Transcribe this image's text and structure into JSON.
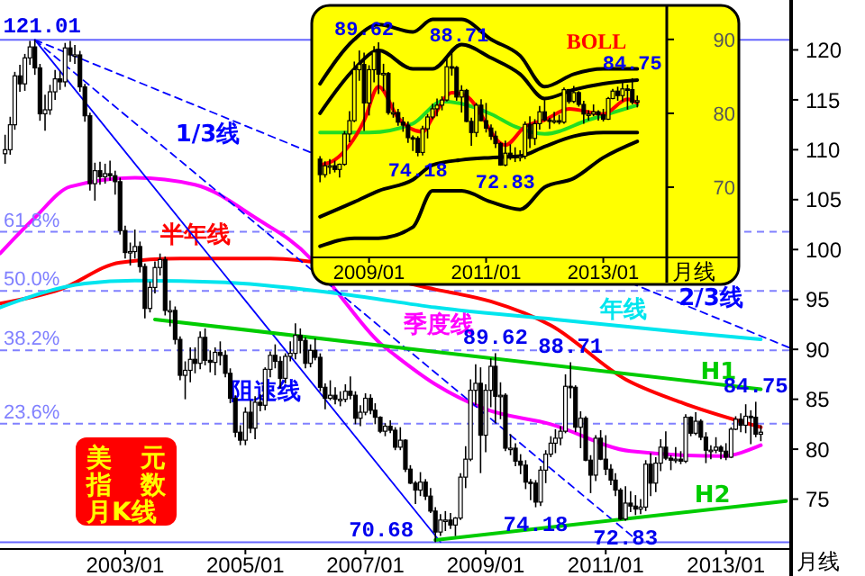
{
  "chart_data": [
    {
      "type": "candlestick",
      "title": "美元指数月K线",
      "xlabel": "月线",
      "xlim": [
        "2000-12",
        "2014-02"
      ],
      "ylim": [
        70,
        125
      ],
      "xticks": [
        {
          "value": "2003-01",
          "label": "2003/01"
        },
        {
          "value": "2005-01",
          "label": "2005/01"
        },
        {
          "value": "2007-01",
          "label": "2007/01"
        },
        {
          "value": "2009-01",
          "label": "2009/01"
        },
        {
          "value": "2011-01",
          "label": "2011/01"
        },
        {
          "value": "2013-01",
          "label": "2013/01"
        }
      ],
      "yticks": [
        75,
        80,
        85,
        90,
        95,
        100,
        105,
        110,
        115,
        120
      ],
      "x": [
        "2001-01",
        "2001-02",
        "2001-03",
        "2001-04",
        "2001-05",
        "2001-06",
        "2001-07",
        "2001-08",
        "2001-09",
        "2001-10",
        "2001-11",
        "2001-12",
        "2002-01",
        "2002-02",
        "2002-03",
        "2002-04",
        "2002-05",
        "2002-06",
        "2002-07",
        "2002-08",
        "2002-09",
        "2002-10",
        "2002-11",
        "2002-12",
        "2003-01",
        "2003-02",
        "2003-03",
        "2003-04",
        "2003-05",
        "2003-06",
        "2003-07",
        "2003-08",
        "2003-09",
        "2003-10",
        "2003-11",
        "2003-12",
        "2004-01",
        "2004-02",
        "2004-03",
        "2004-04",
        "2004-05",
        "2004-06",
        "2004-07",
        "2004-08",
        "2004-09",
        "2004-10",
        "2004-11",
        "2004-12",
        "2005-01",
        "2005-02",
        "2005-03",
        "2005-04",
        "2005-05",
        "2005-06",
        "2005-07",
        "2005-08",
        "2005-09",
        "2005-10",
        "2005-11",
        "2005-12",
        "2006-01",
        "2006-02",
        "2006-03",
        "2006-04",
        "2006-05",
        "2006-06",
        "2006-07",
        "2006-08",
        "2006-09",
        "2006-10",
        "2006-11",
        "2006-12",
        "2007-01",
        "2007-02",
        "2007-03",
        "2007-04",
        "2007-05",
        "2007-06",
        "2007-07",
        "2007-08",
        "2007-09",
        "2007-10",
        "2007-11",
        "2007-12",
        "2008-01",
        "2008-02",
        "2008-03",
        "2008-04",
        "2008-05",
        "2008-06",
        "2008-07",
        "2008-08",
        "2008-09",
        "2008-10",
        "2008-11",
        "2008-12",
        "2009-01",
        "2009-02",
        "2009-03",
        "2009-04",
        "2009-05",
        "2009-06",
        "2009-07",
        "2009-08",
        "2009-09",
        "2009-10",
        "2009-11",
        "2009-12",
        "2010-01",
        "2010-02",
        "2010-03",
        "2010-04",
        "2010-05",
        "2010-06",
        "2010-07",
        "2010-08",
        "2010-09",
        "2010-10",
        "2010-11",
        "2010-12",
        "2011-01",
        "2011-02",
        "2011-03",
        "2011-04",
        "2011-05",
        "2011-06",
        "2011-07",
        "2011-08",
        "2011-09",
        "2011-10",
        "2011-11",
        "2011-12",
        "2012-01",
        "2012-02",
        "2012-03",
        "2012-04",
        "2012-05",
        "2012-06",
        "2012-07",
        "2012-08",
        "2012-09",
        "2012-10",
        "2012-11",
        "2012-12",
        "2013-01",
        "2013-02",
        "2013-03",
        "2013-04",
        "2013-05",
        "2013-06",
        "2013-07",
        "2013-08"
      ],
      "ohlc": [
        [
          109.6,
          111.5,
          108.6,
          110.0
        ],
        [
          110.0,
          113.3,
          109.5,
          112.5
        ],
        [
          112.5,
          117.8,
          112.0,
          117.4
        ],
        [
          117.4,
          118.5,
          115.8,
          116.6
        ],
        [
          116.6,
          119.6,
          115.9,
          119.2
        ],
        [
          119.2,
          120.9,
          118.5,
          120.3
        ],
        [
          120.3,
          121.01,
          117.5,
          118.2
        ],
        [
          118.2,
          118.6,
          112.9,
          113.6
        ],
        [
          113.6,
          115.5,
          111.9,
          114.0
        ],
        [
          114.0,
          116.5,
          113.5,
          115.8
        ],
        [
          115.8,
          118.0,
          115.0,
          117.1
        ],
        [
          117.1,
          117.9,
          116.0,
          116.8
        ],
        [
          116.8,
          120.7,
          116.3,
          120.2
        ],
        [
          120.2,
          120.9,
          118.8,
          119.5
        ],
        [
          119.5,
          120.5,
          118.6,
          119.5
        ],
        [
          119.5,
          119.9,
          115.8,
          116.3
        ],
        [
          116.3,
          116.6,
          112.8,
          113.4
        ],
        [
          113.4,
          113.7,
          105.9,
          106.6
        ],
        [
          106.6,
          108.7,
          104.9,
          107.9
        ],
        [
          107.9,
          108.8,
          106.5,
          107.3
        ],
        [
          107.3,
          108.6,
          106.6,
          107.6
        ],
        [
          107.6,
          108.9,
          106.9,
          107.4
        ],
        [
          107.4,
          107.9,
          105.5,
          106.8
        ],
        [
          106.8,
          107.2,
          101.5,
          101.9
        ],
        [
          101.9,
          102.4,
          99.1,
          99.7
        ],
        [
          99.7,
          100.7,
          98.4,
          99.8
        ],
        [
          99.8,
          102.0,
          99.1,
          100.3
        ],
        [
          100.3,
          100.8,
          97.7,
          98.3
        ],
        [
          98.3,
          98.6,
          93.1,
          94.1
        ],
        [
          94.1,
          96.8,
          93.7,
          96.2
        ],
        [
          96.2,
          98.8,
          95.6,
          98.2
        ],
        [
          98.2,
          99.6,
          97.4,
          99.0
        ],
        [
          99.0,
          99.3,
          93.4,
          93.9
        ],
        [
          93.9,
          94.9,
          92.3,
          93.9
        ],
        [
          93.9,
          94.3,
          90.5,
          91.0
        ],
        [
          91.0,
          91.3,
          86.9,
          87.4
        ],
        [
          87.4,
          88.8,
          85.0,
          87.9
        ],
        [
          87.9,
          90.2,
          86.7,
          89.0
        ],
        [
          89.0,
          90.2,
          87.6,
          88.6
        ],
        [
          88.6,
          91.8,
          88.0,
          91.2
        ],
        [
          91.2,
          92.1,
          88.4,
          88.9
        ],
        [
          88.9,
          89.9,
          87.7,
          88.7
        ],
        [
          88.7,
          90.2,
          87.4,
          89.7
        ],
        [
          89.7,
          90.8,
          88.4,
          89.4
        ],
        [
          89.4,
          89.9,
          87.2,
          87.6
        ],
        [
          87.6,
          88.1,
          84.6,
          85.1
        ],
        [
          85.1,
          85.4,
          81.2,
          81.7
        ],
        [
          81.7,
          82.4,
          80.4,
          80.9
        ],
        [
          80.9,
          84.2,
          80.4,
          83.7
        ],
        [
          83.7,
          84.9,
          81.6,
          82.1
        ],
        [
          82.1,
          85.3,
          81.0,
          84.7
        ],
        [
          84.7,
          85.5,
          83.8,
          84.4
        ],
        [
          84.4,
          88.2,
          83.9,
          88.0
        ],
        [
          88.0,
          89.8,
          87.2,
          89.4
        ],
        [
          89.4,
          90.5,
          88.1,
          88.8
        ],
        [
          88.8,
          89.3,
          86.1,
          87.1
        ],
        [
          87.1,
          89.6,
          86.6,
          89.3
        ],
        [
          89.3,
          90.8,
          88.8,
          89.6
        ],
        [
          89.6,
          92.6,
          89.0,
          91.4
        ],
        [
          91.4,
          92.1,
          89.6,
          90.9
        ],
        [
          90.9,
          91.2,
          88.1,
          88.6
        ],
        [
          88.6,
          90.5,
          88.2,
          89.9
        ],
        [
          89.9,
          91.1,
          88.9,
          89.2
        ],
        [
          89.2,
          89.6,
          85.8,
          86.2
        ],
        [
          86.2,
          86.6,
          84.0,
          85.1
        ],
        [
          85.1,
          86.9,
          84.9,
          85.4
        ],
        [
          85.4,
          86.2,
          84.5,
          85.0
        ],
        [
          85.0,
          85.8,
          84.3,
          85.0
        ],
        [
          85.0,
          86.5,
          84.7,
          85.8
        ],
        [
          85.8,
          87.3,
          85.0,
          85.4
        ],
        [
          85.4,
          85.8,
          82.5,
          83.1
        ],
        [
          83.1,
          84.4,
          82.3,
          83.7
        ],
        [
          83.7,
          85.6,
          83.4,
          85.1
        ],
        [
          85.1,
          85.5,
          83.5,
          83.9
        ],
        [
          83.9,
          84.6,
          82.5,
          83.2
        ],
        [
          83.2,
          83.3,
          81.6,
          81.8
        ],
        [
          81.8,
          82.6,
          81.3,
          82.3
        ],
        [
          82.3,
          82.9,
          81.6,
          81.9
        ],
        [
          81.9,
          82.2,
          79.9,
          80.2
        ],
        [
          80.2,
          82.2,
          79.9,
          80.9
        ],
        [
          80.9,
          81.0,
          77.7,
          78.0
        ],
        [
          78.0,
          78.4,
          76.5,
          76.6
        ],
        [
          76.6,
          76.8,
          74.5,
          75.9
        ],
        [
          75.9,
          77.7,
          75.3,
          76.7
        ],
        [
          76.7,
          77.0,
          74.9,
          75.3
        ],
        [
          75.3,
          76.1,
          73.6,
          73.8
        ],
        [
          73.8,
          74.2,
          70.68,
          71.7
        ],
        [
          71.7,
          73.5,
          71.3,
          72.9
        ],
        [
          72.9,
          73.8,
          71.8,
          72.9
        ],
        [
          72.9,
          73.6,
          72.0,
          72.4
        ],
        [
          72.4,
          73.2,
          71.3,
          73.1
        ],
        [
          73.1,
          77.6,
          72.9,
          77.2
        ],
        [
          77.2,
          80.3,
          76.1,
          79.0
        ],
        [
          79.0,
          87.0,
          78.8,
          85.9
        ],
        [
          85.9,
          88.5,
          84.4,
          86.6
        ],
        [
          86.6,
          88.2,
          77.6,
          81.4
        ],
        [
          81.4,
          86.5,
          79.7,
          85.9
        ],
        [
          85.9,
          89.1,
          84.2,
          88.3
        ],
        [
          88.3,
          89.62,
          82.6,
          85.3
        ],
        [
          85.3,
          86.7,
          83.0,
          85.4
        ],
        [
          85.4,
          85.6,
          79.8,
          80.1
        ],
        [
          80.1,
          81.5,
          79.4,
          80.1
        ],
        [
          80.1,
          80.6,
          78.3,
          78.8
        ],
        [
          78.8,
          79.5,
          77.5,
          78.4
        ],
        [
          78.4,
          78.9,
          76.0,
          76.7
        ],
        [
          76.7,
          77.0,
          74.9,
          76.6
        ],
        [
          76.6,
          76.9,
          74.18,
          74.7
        ],
        [
          74.7,
          78.3,
          74.3,
          77.9
        ],
        [
          77.9,
          79.9,
          76.6,
          79.5
        ],
        [
          79.5,
          81.3,
          79.2,
          80.6
        ],
        [
          80.6,
          82.0,
          79.6,
          81.1
        ],
        [
          81.1,
          82.3,
          80.4,
          81.8
        ],
        [
          81.8,
          87.5,
          81.6,
          86.3
        ],
        [
          86.3,
          88.71,
          85.1,
          86.2
        ],
        [
          86.2,
          86.4,
          81.7,
          82.2
        ],
        [
          82.2,
          83.8,
          80.1,
          83.1
        ],
        [
          83.1,
          83.3,
          78.8,
          78.9
        ],
        [
          78.9,
          79.4,
          75.6,
          77.4
        ],
        [
          77.4,
          81.4,
          76.8,
          81.1
        ],
        [
          81.1,
          81.9,
          78.9,
          79.0
        ],
        [
          79.0,
          81.4,
          77.4,
          78.0
        ],
        [
          78.0,
          78.5,
          76.4,
          76.9
        ],
        [
          76.9,
          77.6,
          75.3,
          75.9
        ],
        [
          75.9,
          76.1,
          72.9,
          73.0
        ],
        [
          73.0,
          76.3,
          72.83,
          74.6
        ],
        [
          74.6,
          75.8,
          73.7,
          74.3
        ],
        [
          74.3,
          75.4,
          73.4,
          74.0
        ],
        [
          74.0,
          75.0,
          73.5,
          74.2
        ],
        [
          74.2,
          78.9,
          73.8,
          78.5
        ],
        [
          78.5,
          79.6,
          75.3,
          76.6
        ],
        [
          76.6,
          79.2,
          75.7,
          78.6
        ],
        [
          78.6,
          81.0,
          77.8,
          80.2
        ],
        [
          80.2,
          81.8,
          78.9,
          79.1
        ],
        [
          79.1,
          79.4,
          77.9,
          78.9
        ],
        [
          78.9,
          80.2,
          78.6,
          79.0
        ],
        [
          79.0,
          79.8,
          78.5,
          78.8
        ],
        [
          78.8,
          83.5,
          78.6,
          83.2
        ],
        [
          83.2,
          83.3,
          81.3,
          81.6
        ],
        [
          81.6,
          83.7,
          81.4,
          82.8
        ],
        [
          82.8,
          83.0,
          80.9,
          81.2
        ],
        [
          81.2,
          81.7,
          78.6,
          79.9
        ],
        [
          79.9,
          80.4,
          79.0,
          79.9
        ],
        [
          79.9,
          81.2,
          79.6,
          80.2
        ],
        [
          80.2,
          80.4,
          79.0,
          79.8
        ],
        [
          79.8,
          80.6,
          78.9,
          79.2
        ],
        [
          79.2,
          82.2,
          79.1,
          82.0
        ],
        [
          82.0,
          83.3,
          81.9,
          83.0
        ],
        [
          83.0,
          83.6,
          81.7,
          82.4
        ],
        [
          82.4,
          84.5,
          81.6,
          83.3
        ],
        [
          83.3,
          83.9,
          80.5,
          83.2
        ],
        [
          83.2,
          84.75,
          81.2,
          81.5
        ],
        [
          81.5,
          82.4,
          80.8,
          81.7
        ]
      ],
      "series": [
        {
          "name": "季度线",
          "type": "line",
          "color": "#ff00ff",
          "x": [
            "2000-12",
            "2001-07",
            "2002-02",
            "2003-03",
            "2004-03",
            "2005-03",
            "2006-02",
            "2006-07",
            "2007-04",
            "2007-07",
            "2008-03",
            "2009-01",
            "2010-02",
            "2011-06",
            "2012-12",
            "2013-08"
          ],
          "values": [
            99.6,
            103.2,
            106.3,
            107.2,
            106.5,
            103.2,
            99.1,
            96.0,
            90.6,
            89.4,
            86.5,
            84.0,
            82.5,
            79.8,
            79.3,
            80.4
          ]
        },
        {
          "name": "半年线",
          "type": "line",
          "color": "#ff0000",
          "x": [
            "2000-12",
            "2001-12",
            "2002-12",
            "2003-12",
            "2005-06",
            "2008-03",
            "2009-02",
            "2010-02",
            "2011-05",
            "2012-04",
            "2013-08"
          ],
          "values": [
            94.6,
            96.0,
            98.7,
            99.1,
            99.1,
            96.0,
            94.8,
            92.4,
            87.0,
            84.7,
            82.2
          ]
        },
        {
          "name": "年线",
          "type": "line",
          "color": "#00e5ee",
          "x": [
            "2000-12",
            "2002-05",
            "2003-03",
            "2004-09",
            "2006-09",
            "2008-03",
            "2010-03",
            "2011-09",
            "2012-09",
            "2013-08"
          ],
          "values": [
            94.2,
            96.6,
            96.9,
            96.7,
            95.5,
            94.2,
            93.0,
            92.1,
            91.5,
            91.0
          ]
        },
        {
          "name": "阻速线",
          "type": "line",
          "color": "#0000ff",
          "line_style": "solid",
          "x": [
            "2001-07",
            "2008-04"
          ],
          "values": [
            121.0,
            70.7
          ]
        },
        {
          "name": "1/3线",
          "type": "line",
          "color": "#0000ff",
          "line_style": "dashed",
          "x": [
            "2001-07",
            "2011-07"
          ],
          "values": [
            121.0,
            71.0
          ]
        },
        {
          "name": "2/3线",
          "type": "line",
          "color": "#0000ff",
          "line_style": "dashed",
          "x": [
            "2001-07",
            "2014-02"
          ],
          "values": [
            121.0,
            90.1
          ]
        },
        {
          "name": "H1",
          "type": "line",
          "color": "#00cc00",
          "x": [
            "2003-07",
            "2013-08"
          ],
          "values": [
            93.0,
            86.0
          ]
        },
        {
          "name": "H2",
          "type": "line",
          "color": "#00cc00",
          "x": [
            "2008-03",
            "2014-01"
          ],
          "values": [
            70.9,
            74.8
          ]
        }
      ],
      "ref_lines": [
        {
          "axis": "y",
          "value": 121.01,
          "color": "#6666ff",
          "line_style": "solid"
        },
        {
          "axis": "y",
          "value": 101.78,
          "color": "#8080ff",
          "line_style": "dashed"
        },
        {
          "axis": "y",
          "value": 95.85,
          "color": "#8080ff",
          "line_style": "dashed"
        },
        {
          "axis": "y",
          "value": 89.91,
          "color": "#8080ff",
          "line_style": "dashed"
        },
        {
          "axis": "y",
          "value": 82.56,
          "color": "#8080ff",
          "line_style": "dashed"
        },
        {
          "axis": "y",
          "value": 70.68,
          "color": "#6666ff",
          "line_style": "solid"
        }
      ],
      "annotations": [
        {
          "text": "121.01",
          "x": "2001-07",
          "y": 121.01
        },
        {
          "text": "89.62",
          "x": "2009-03",
          "y": 89.62
        },
        {
          "text": "88.71",
          "x": "2010-06",
          "y": 88.71
        },
        {
          "text": "84.75",
          "x": "2013-07",
          "y": 84.75
        },
        {
          "text": "74.18",
          "x": "2009-11",
          "y": 74.18
        },
        {
          "text": "72.83",
          "x": "2011-05",
          "y": 72.83
        },
        {
          "text": "70.68",
          "x": "2008-03",
          "y": 70.68
        },
        {
          "text": "61.8%",
          "x": "2000-12",
          "y": 101.78
        },
        {
          "text": "50.0%",
          "x": "2000-12",
          "y": 95.85
        },
        {
          "text": "38.2%",
          "x": "2000-12",
          "y": 89.91
        },
        {
          "text": "23.6%",
          "x": "2000-12",
          "y": 82.56
        }
      ]
    },
    {
      "type": "candlestick",
      "title": "BOLL",
      "xlabel": "月线",
      "xlim": [
        "2008-02",
        "2014-02"
      ],
      "ylim": [
        60.5,
        94.6
      ],
      "xticks": [
        {
          "value": "2009-01",
          "label": "2009/01"
        },
        {
          "value": "2011-01",
          "label": "2011/01"
        },
        {
          "value": "2013-01",
          "label": "2013/01"
        }
      ],
      "yticks": [
        70,
        80,
        90
      ],
      "x": [
        "2008-03",
        "2008-04",
        "2008-05",
        "2008-06",
        "2008-07",
        "2008-08",
        "2008-09",
        "2008-10",
        "2008-11",
        "2008-12",
        "2009-01",
        "2009-02",
        "2009-03",
        "2009-04",
        "2009-05",
        "2009-06",
        "2009-07",
        "2009-08",
        "2009-09",
        "2009-10",
        "2009-11",
        "2009-12",
        "2010-01",
        "2010-02",
        "2010-03",
        "2010-04",
        "2010-05",
        "2010-06",
        "2010-07",
        "2010-08",
        "2010-09",
        "2010-10",
        "2010-11",
        "2010-12",
        "2011-01",
        "2011-02",
        "2011-03",
        "2011-04",
        "2011-05",
        "2011-06",
        "2011-07",
        "2011-08",
        "2011-09",
        "2011-10",
        "2011-11",
        "2011-12",
        "2012-01",
        "2012-02",
        "2012-03",
        "2012-04",
        "2012-05",
        "2012-06",
        "2012-07",
        "2012-08",
        "2012-09",
        "2012-10",
        "2012-11",
        "2012-12",
        "2013-01",
        "2013-02",
        "2013-03",
        "2013-04",
        "2013-05",
        "2013-06",
        "2013-07",
        "2013-08"
      ],
      "ohlc": [
        [
          73.8,
          74.2,
          70.68,
          71.7
        ],
        [
          71.7,
          73.5,
          71.3,
          72.9
        ],
        [
          72.9,
          73.8,
          71.8,
          72.9
        ],
        [
          72.9,
          73.6,
          72.0,
          72.4
        ],
        [
          72.4,
          73.2,
          71.3,
          73.1
        ],
        [
          73.1,
          77.6,
          72.9,
          77.2
        ],
        [
          77.2,
          80.3,
          76.1,
          79.0
        ],
        [
          79.0,
          87.0,
          78.8,
          85.9
        ],
        [
          85.9,
          88.5,
          84.4,
          86.6
        ],
        [
          86.6,
          88.2,
          77.6,
          81.4
        ],
        [
          81.4,
          86.5,
          79.7,
          85.9
        ],
        [
          85.9,
          89.1,
          84.2,
          88.3
        ],
        [
          88.3,
          89.62,
          82.6,
          85.3
        ],
        [
          85.3,
          86.7,
          83.0,
          85.4
        ],
        [
          85.4,
          85.6,
          79.8,
          80.1
        ],
        [
          80.1,
          81.5,
          79.4,
          80.1
        ],
        [
          80.1,
          80.6,
          78.3,
          78.8
        ],
        [
          78.8,
          79.5,
          77.5,
          78.4
        ],
        [
          78.4,
          78.9,
          76.0,
          76.7
        ],
        [
          76.7,
          77.0,
          74.9,
          76.6
        ],
        [
          76.6,
          76.9,
          74.18,
          74.7
        ],
        [
          74.7,
          78.3,
          74.3,
          77.9
        ],
        [
          77.9,
          79.9,
          76.6,
          79.5
        ],
        [
          79.5,
          81.3,
          79.2,
          80.6
        ],
        [
          80.6,
          82.0,
          79.6,
          81.1
        ],
        [
          81.1,
          82.3,
          80.4,
          81.8
        ],
        [
          81.8,
          87.5,
          81.6,
          86.3
        ],
        [
          86.3,
          88.71,
          85.1,
          86.2
        ],
        [
          86.2,
          86.4,
          81.7,
          82.2
        ],
        [
          82.2,
          83.8,
          80.1,
          83.1
        ],
        [
          83.1,
          83.3,
          78.8,
          78.9
        ],
        [
          78.9,
          79.4,
          75.6,
          77.4
        ],
        [
          77.4,
          81.4,
          76.8,
          81.1
        ],
        [
          81.1,
          81.9,
          78.9,
          79.0
        ],
        [
          79.0,
          81.4,
          77.4,
          78.0
        ],
        [
          78.0,
          78.5,
          76.4,
          76.9
        ],
        [
          76.9,
          77.6,
          75.3,
          75.9
        ],
        [
          75.9,
          76.1,
          72.9,
          73.0
        ],
        [
          73.0,
          76.3,
          72.83,
          74.6
        ],
        [
          74.6,
          75.8,
          73.7,
          74.3
        ],
        [
          74.3,
          75.4,
          73.4,
          74.0
        ],
        [
          74.0,
          75.0,
          73.5,
          74.2
        ],
        [
          74.2,
          78.9,
          73.8,
          78.5
        ],
        [
          78.5,
          79.6,
          75.3,
          76.6
        ],
        [
          76.6,
          79.2,
          75.7,
          78.6
        ],
        [
          78.6,
          81.0,
          77.8,
          80.2
        ],
        [
          80.2,
          81.8,
          78.9,
          79.1
        ],
        [
          79.1,
          79.4,
          77.9,
          78.9
        ],
        [
          78.9,
          80.2,
          78.6,
          79.0
        ],
        [
          79.0,
          79.8,
          78.5,
          78.8
        ],
        [
          78.8,
          83.5,
          78.6,
          83.2
        ],
        [
          83.2,
          83.3,
          81.3,
          81.6
        ],
        [
          81.6,
          83.7,
          81.4,
          82.8
        ],
        [
          82.8,
          83.0,
          80.9,
          81.2
        ],
        [
          81.2,
          81.7,
          78.6,
          79.9
        ],
        [
          79.9,
          80.4,
          79.0,
          79.9
        ],
        [
          79.9,
          81.2,
          79.6,
          80.2
        ],
        [
          80.2,
          80.4,
          79.0,
          79.8
        ],
        [
          79.8,
          80.6,
          78.9,
          79.2
        ],
        [
          79.2,
          82.2,
          79.1,
          82.0
        ],
        [
          82.0,
          83.3,
          81.9,
          83.0
        ],
        [
          83.0,
          83.6,
          81.7,
          82.4
        ],
        [
          82.4,
          84.5,
          81.6,
          83.3
        ],
        [
          83.3,
          83.9,
          80.5,
          83.2
        ],
        [
          83.2,
          84.75,
          81.2,
          81.5
        ],
        [
          81.5,
          82.4,
          80.8,
          81.7
        ]
      ],
      "series": [
        {
          "type": "line",
          "color": "#000000",
          "x": [
            "2008-03",
            "2008-10",
            "2009-03",
            "2009-10",
            "2010-02",
            "2010-08",
            "2011-02",
            "2011-08",
            "2012-01",
            "2012-07",
            "2013-01",
            "2013-08"
          ],
          "values": [
            84.0,
            90.0,
            92.0,
            91.0,
            92.7,
            92.7,
            90.0,
            87.8,
            83.6,
            85.3,
            86.0,
            86.0
          ]
        },
        {
          "type": "line",
          "color": "#000000",
          "x": [
            "2008-03",
            "2008-10",
            "2009-03",
            "2009-10",
            "2010-02",
            "2010-08",
            "2011-02",
            "2011-08",
            "2012-01",
            "2012-07",
            "2013-01",
            "2013-08"
          ],
          "values": [
            80.0,
            86.0,
            88.5,
            86.0,
            86.0,
            89.3,
            87.5,
            85.3,
            82.0,
            83.2,
            84.0,
            84.5
          ]
        },
        {
          "type": "line",
          "color": "#000000",
          "x": [
            "2008-03",
            "2008-10",
            "2009-03",
            "2009-10",
            "2010-02",
            "2010-08",
            "2011-02",
            "2011-08",
            "2012-01",
            "2012-07",
            "2013-01",
            "2013-08"
          ],
          "values": [
            66.0,
            68.0,
            69.5,
            71.0,
            73.0,
            73.7,
            74.0,
            74.2,
            75.5,
            76.9,
            77.4,
            77.4
          ]
        },
        {
          "type": "line",
          "color": "#000000",
          "x": [
            "2008-03",
            "2008-10",
            "2009-03",
            "2009-10",
            "2010-02",
            "2010-08",
            "2011-02",
            "2011-08",
            "2012-01",
            "2012-07",
            "2013-01",
            "2013-08"
          ],
          "values": [
            62.0,
            63.1,
            63.1,
            64.6,
            69.5,
            69.5,
            68.0,
            67.0,
            70.0,
            71.2,
            74.0,
            76.2
          ]
        },
        {
          "type": "line",
          "color": "#22dd22",
          "x": [
            "2008-03",
            "2009-01",
            "2009-10",
            "2010-04",
            "2010-08",
            "2011-02",
            "2011-07",
            "2012-01",
            "2012-10",
            "2013-08"
          ],
          "values": [
            77.4,
            77.4,
            78.6,
            81.6,
            81.3,
            79.9,
            78.2,
            77.2,
            79.1,
            81.1
          ]
        },
        {
          "type": "line",
          "color": "#ff0000",
          "x": [
            "2008-03",
            "2008-06",
            "2008-12",
            "2009-03",
            "2009-07",
            "2009-12",
            "2010-02",
            "2010-06",
            "2010-09",
            "2011-05",
            "2011-09",
            "2012-01",
            "2012-06",
            "2013-01",
            "2013-06",
            "2013-08"
          ],
          "values": [
            73.0,
            73.7,
            79.0,
            83.6,
            79.4,
            77.5,
            79.4,
            82.8,
            82.3,
            75.7,
            78.2,
            79.1,
            80.6,
            79.9,
            81.9,
            81.4
          ]
        }
      ],
      "annotations": [
        {
          "text": "89.62",
          "x": "2009-03",
          "y": 89.62
        },
        {
          "text": "88.71",
          "x": "2010-06",
          "y": 88.71
        },
        {
          "text": "74.18",
          "x": "2009-11",
          "y": 74.18
        },
        {
          "text": "72.83",
          "x": "2011-05",
          "y": 72.83
        },
        {
          "text": "84.75",
          "x": "2013-07",
          "y": 84.75
        }
      ]
    }
  ]
}
